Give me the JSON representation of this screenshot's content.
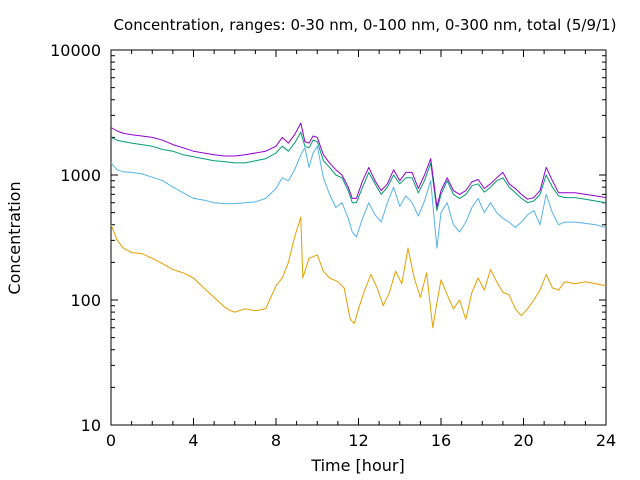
{
  "chart_data": {
    "type": "line",
    "title": "Concentration, ranges: 0-30 nm, 0-100 nm, 0-300 nm, total (5/9/1)",
    "xlabel": "Time [hour]",
    "ylabel": "Concentration",
    "xlim": [
      0,
      24
    ],
    "ylim": [
      10,
      10000
    ],
    "y_scale": "log",
    "grid": false,
    "x_ticks": [
      0,
      4,
      8,
      12,
      16,
      20,
      24
    ],
    "x_tick_labels": [
      "0",
      "4",
      "8",
      "12",
      "16",
      "20",
      "24"
    ],
    "y_ticks": [
      10,
      100,
      1000,
      10000
    ],
    "y_tick_labels": [
      "10",
      "100",
      "1000",
      "10000"
    ],
    "series": [
      {
        "key": "s30",
        "color": "#e69f00",
        "x": [
          0,
          0.3,
          0.6,
          1,
          1.5,
          2,
          2.5,
          3,
          3.5,
          4,
          4.5,
          5,
          5.5,
          5.8,
          6,
          6.5,
          7,
          7.5,
          8,
          8.3,
          8.6,
          8.9,
          9.2,
          9.3,
          9.6,
          10,
          10.3,
          10.6,
          11,
          11.3,
          11.6,
          11.8,
          12,
          12.3,
          12.6,
          12.9,
          13.2,
          13.5,
          13.8,
          14.1,
          14.4,
          14.7,
          15,
          15.3,
          15.6,
          15.8,
          16,
          16.3,
          16.6,
          16.9,
          17.2,
          17.5,
          17.8,
          18.1,
          18.4,
          18.7,
          19,
          19.3,
          19.6,
          19.9,
          20.2,
          20.5,
          20.8,
          21.1,
          21.4,
          21.7,
          22,
          22.5,
          23,
          23.5,
          24
        ],
        "y": [
          400,
          300,
          260,
          240,
          235,
          215,
          195,
          175,
          165,
          150,
          125,
          105,
          88,
          82,
          80,
          85,
          82,
          85,
          130,
          150,
          200,
          320,
          460,
          150,
          215,
          230,
          170,
          150,
          140,
          125,
          70,
          65,
          85,
          120,
          160,
          125,
          90,
          115,
          170,
          135,
          260,
          150,
          105,
          165,
          60,
          95,
          145,
          110,
          85,
          100,
          70,
          115,
          150,
          120,
          175,
          140,
          115,
          110,
          85,
          75,
          85,
          100,
          120,
          160,
          125,
          120,
          140,
          135,
          140,
          135,
          130
        ]
      },
      {
        "key": "s100",
        "color": "#56b4e9",
        "x": [
          0,
          0.3,
          0.6,
          1,
          1.5,
          2,
          2.5,
          3,
          3.5,
          4,
          4.5,
          5,
          5.5,
          6,
          6.5,
          7,
          7.5,
          8,
          8.3,
          8.6,
          8.9,
          9.2,
          9.4,
          9.6,
          9.8,
          10,
          10.3,
          10.6,
          10.9,
          11.2,
          11.5,
          11.7,
          11.9,
          12.2,
          12.5,
          12.8,
          13.1,
          13.4,
          13.7,
          14,
          14.3,
          14.6,
          14.9,
          15.2,
          15.5,
          15.8,
          16,
          16.3,
          16.6,
          16.9,
          17.2,
          17.5,
          17.8,
          18.1,
          18.4,
          18.7,
          19,
          19.3,
          19.6,
          19.9,
          20.2,
          20.5,
          20.8,
          21.1,
          21.4,
          21.7,
          22,
          22.5,
          23,
          23.5,
          24
        ],
        "y": [
          1250,
          1100,
          1060,
          1050,
          1020,
          960,
          900,
          800,
          720,
          650,
          630,
          600,
          590,
          590,
          600,
          610,
          650,
          780,
          950,
          900,
          1100,
          1450,
          1650,
          1150,
          1500,
          1700,
          950,
          700,
          550,
          600,
          450,
          350,
          320,
          450,
          600,
          480,
          420,
          600,
          800,
          560,
          680,
          600,
          470,
          620,
          900,
          260,
          500,
          600,
          400,
          350,
          420,
          550,
          650,
          500,
          600,
          500,
          450,
          420,
          380,
          420,
          480,
          520,
          400,
          700,
          500,
          400,
          420,
          420,
          410,
          400,
          380
        ]
      },
      {
        "key": "s300",
        "color": "#009e73",
        "x": [
          0,
          0.3,
          0.6,
          1,
          1.5,
          2,
          2.5,
          3,
          3.5,
          4,
          4.5,
          5,
          5.5,
          6,
          6.5,
          7,
          7.5,
          8,
          8.3,
          8.6,
          8.9,
          9.2,
          9.4,
          9.6,
          9.8,
          10,
          10.3,
          10.6,
          10.9,
          11.2,
          11.5,
          11.7,
          11.9,
          12.2,
          12.5,
          12.8,
          13.1,
          13.4,
          13.7,
          14,
          14.3,
          14.6,
          14.9,
          15.2,
          15.5,
          15.8,
          16,
          16.3,
          16.6,
          16.9,
          17.2,
          17.5,
          17.8,
          18.1,
          18.4,
          18.7,
          19,
          19.3,
          19.6,
          19.9,
          20.2,
          20.5,
          20.8,
          21.1,
          21.4,
          21.7,
          22,
          22.5,
          23,
          23.5,
          24
        ],
        "y": [
          2000,
          1900,
          1850,
          1800,
          1750,
          1700,
          1600,
          1550,
          1450,
          1400,
          1350,
          1300,
          1280,
          1250,
          1250,
          1300,
          1350,
          1500,
          1700,
          1550,
          1800,
          2200,
          1700,
          1650,
          1900,
          1850,
          1300,
          1150,
          1000,
          950,
          750,
          600,
          600,
          800,
          1050,
          850,
          700,
          800,
          1000,
          850,
          950,
          950,
          720,
          900,
          1250,
          520,
          700,
          900,
          700,
          650,
          700,
          820,
          850,
          730,
          800,
          900,
          950,
          800,
          720,
          650,
          600,
          620,
          700,
          1000,
          800,
          680,
          660,
          660,
          640,
          620,
          600
        ]
      },
      {
        "key": "total",
        "color": "#9400d3",
        "x": [
          0,
          0.3,
          0.6,
          1,
          1.5,
          2,
          2.5,
          3,
          3.5,
          4,
          4.5,
          5,
          5.5,
          6,
          6.5,
          7,
          7.5,
          8,
          8.3,
          8.6,
          8.9,
          9.2,
          9.4,
          9.6,
          9.8,
          10,
          10.3,
          10.6,
          10.9,
          11.2,
          11.5,
          11.7,
          11.9,
          12.2,
          12.5,
          12.8,
          13.1,
          13.4,
          13.7,
          14,
          14.3,
          14.6,
          14.9,
          15.2,
          15.5,
          15.8,
          16,
          16.3,
          16.6,
          16.9,
          17.2,
          17.5,
          17.8,
          18.1,
          18.4,
          18.7,
          19,
          19.3,
          19.6,
          19.9,
          20.2,
          20.5,
          20.8,
          21.1,
          21.4,
          21.7,
          22,
          22.5,
          23,
          23.5,
          24
        ],
        "y": [
          2400,
          2250,
          2150,
          2100,
          2050,
          2000,
          1900,
          1750,
          1650,
          1550,
          1500,
          1450,
          1420,
          1420,
          1450,
          1500,
          1550,
          1700,
          2000,
          1800,
          2100,
          2600,
          1850,
          1800,
          2050,
          2000,
          1450,
          1250,
          1100,
          1000,
          800,
          650,
          650,
          900,
          1150,
          900,
          750,
          850,
          1100,
          900,
          1050,
          1050,
          780,
          1000,
          1350,
          560,
          750,
          950,
          750,
          700,
          750,
          880,
          920,
          780,
          850,
          950,
          1050,
          850,
          780,
          700,
          640,
          660,
          750,
          1150,
          900,
          720,
          720,
          720,
          700,
          680,
          660
        ]
      }
    ]
  }
}
